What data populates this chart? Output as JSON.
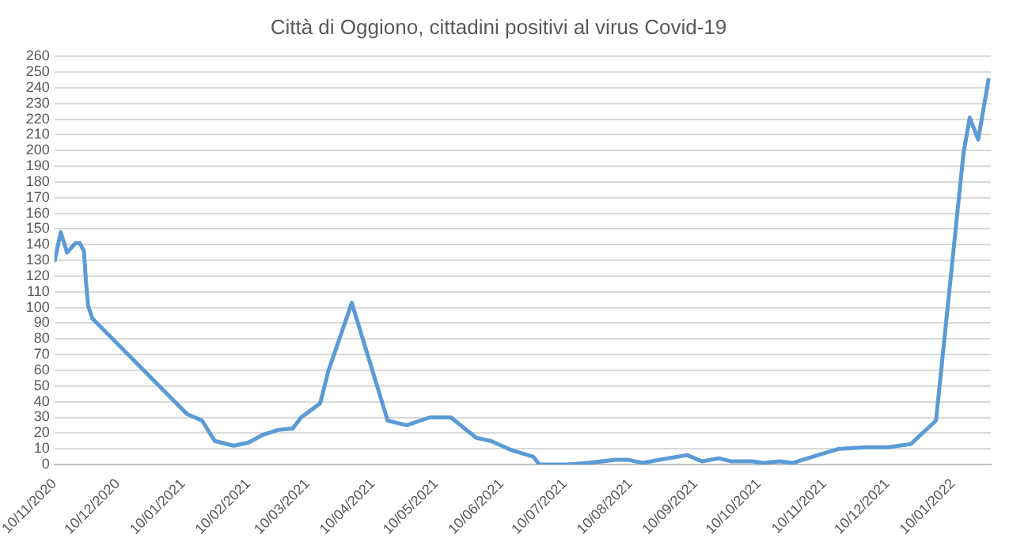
{
  "chart_data": {
    "type": "line",
    "title": "Città di Oggiono, cittadini positivi al virus Covid-19",
    "x": [
      "2020-11-10",
      "2020-11-13",
      "2020-11-16",
      "2020-11-20",
      "2020-11-22",
      "2020-11-24",
      "2020-11-25",
      "2020-11-26",
      "2020-11-28",
      "2021-01-12",
      "2021-01-19",
      "2021-01-25",
      "2021-02-03",
      "2021-02-10",
      "2021-02-17",
      "2021-02-24",
      "2021-03-03",
      "2021-03-07",
      "2021-03-16",
      "2021-03-20",
      "2021-03-31",
      "2021-04-17",
      "2021-04-26",
      "2021-05-07",
      "2021-05-17",
      "2021-05-29",
      "2021-06-05",
      "2021-06-10",
      "2021-06-15",
      "2021-06-25",
      "2021-06-28",
      "2021-07-11",
      "2021-07-21",
      "2021-08-03",
      "2021-08-09",
      "2021-08-16",
      "2021-08-24",
      "2021-09-06",
      "2021-09-13",
      "2021-09-21",
      "2021-09-27",
      "2021-10-07",
      "2021-10-12",
      "2021-10-20",
      "2021-10-26",
      "2021-11-07",
      "2021-11-17",
      "2021-11-30",
      "2021-12-10",
      "2021-12-21",
      "2022-01-02",
      "2022-01-15",
      "2022-01-18",
      "2022-01-22",
      "2022-01-27"
    ],
    "series": [
      {
        "color": "#5b9bd5",
        "values": [
          129,
          148,
          135,
          141,
          141,
          136,
          116,
          101,
          93,
          32,
          28,
          15,
          12,
          14,
          19,
          22,
          23,
          30,
          39,
          60,
          103,
          28,
          25,
          30,
          30,
          17,
          15,
          12,
          9,
          5,
          0,
          0,
          1,
          3,
          3,
          1,
          3,
          6,
          2,
          4,
          2,
          2,
          1,
          2,
          1,
          6,
          10,
          11,
          11,
          13,
          28,
          198,
          221,
          207,
          246
        ]
      }
    ],
    "xlim": [
      "2020-11-10",
      "2022-01-28"
    ],
    "xticks": [
      {
        "value": "2020-11-10",
        "label": "10/11/2020"
      },
      {
        "value": "2020-12-10",
        "label": "10/12/2020"
      },
      {
        "value": "2021-01-10",
        "label": "10/01/2021"
      },
      {
        "value": "2021-02-10",
        "label": "10/02/2021"
      },
      {
        "value": "2021-03-10",
        "label": "10/03/2021"
      },
      {
        "value": "2021-04-10",
        "label": "10/04/2021"
      },
      {
        "value": "2021-05-10",
        "label": "10/05/2021"
      },
      {
        "value": "2021-06-10",
        "label": "10/06/2021"
      },
      {
        "value": "2021-07-10",
        "label": "10/07/2021"
      },
      {
        "value": "2021-08-10",
        "label": "10/08/2021"
      },
      {
        "value": "2021-09-10",
        "label": "10/09/2021"
      },
      {
        "value": "2021-10-10",
        "label": "10/10/2021"
      },
      {
        "value": "2021-11-10",
        "label": "10/11/2021"
      },
      {
        "value": "2021-12-10",
        "label": "10/12/2021"
      },
      {
        "value": "2022-01-10",
        "label": "10/01/2022"
      }
    ],
    "ylim": [
      0,
      260
    ],
    "yticks": [
      0,
      10,
      20,
      30,
      40,
      50,
      60,
      70,
      80,
      90,
      100,
      110,
      120,
      130,
      140,
      150,
      160,
      170,
      180,
      190,
      200,
      210,
      220,
      230,
      240,
      250,
      260
    ],
    "grid": "y",
    "legend": false,
    "marker": "none",
    "line_style": "solid"
  }
}
